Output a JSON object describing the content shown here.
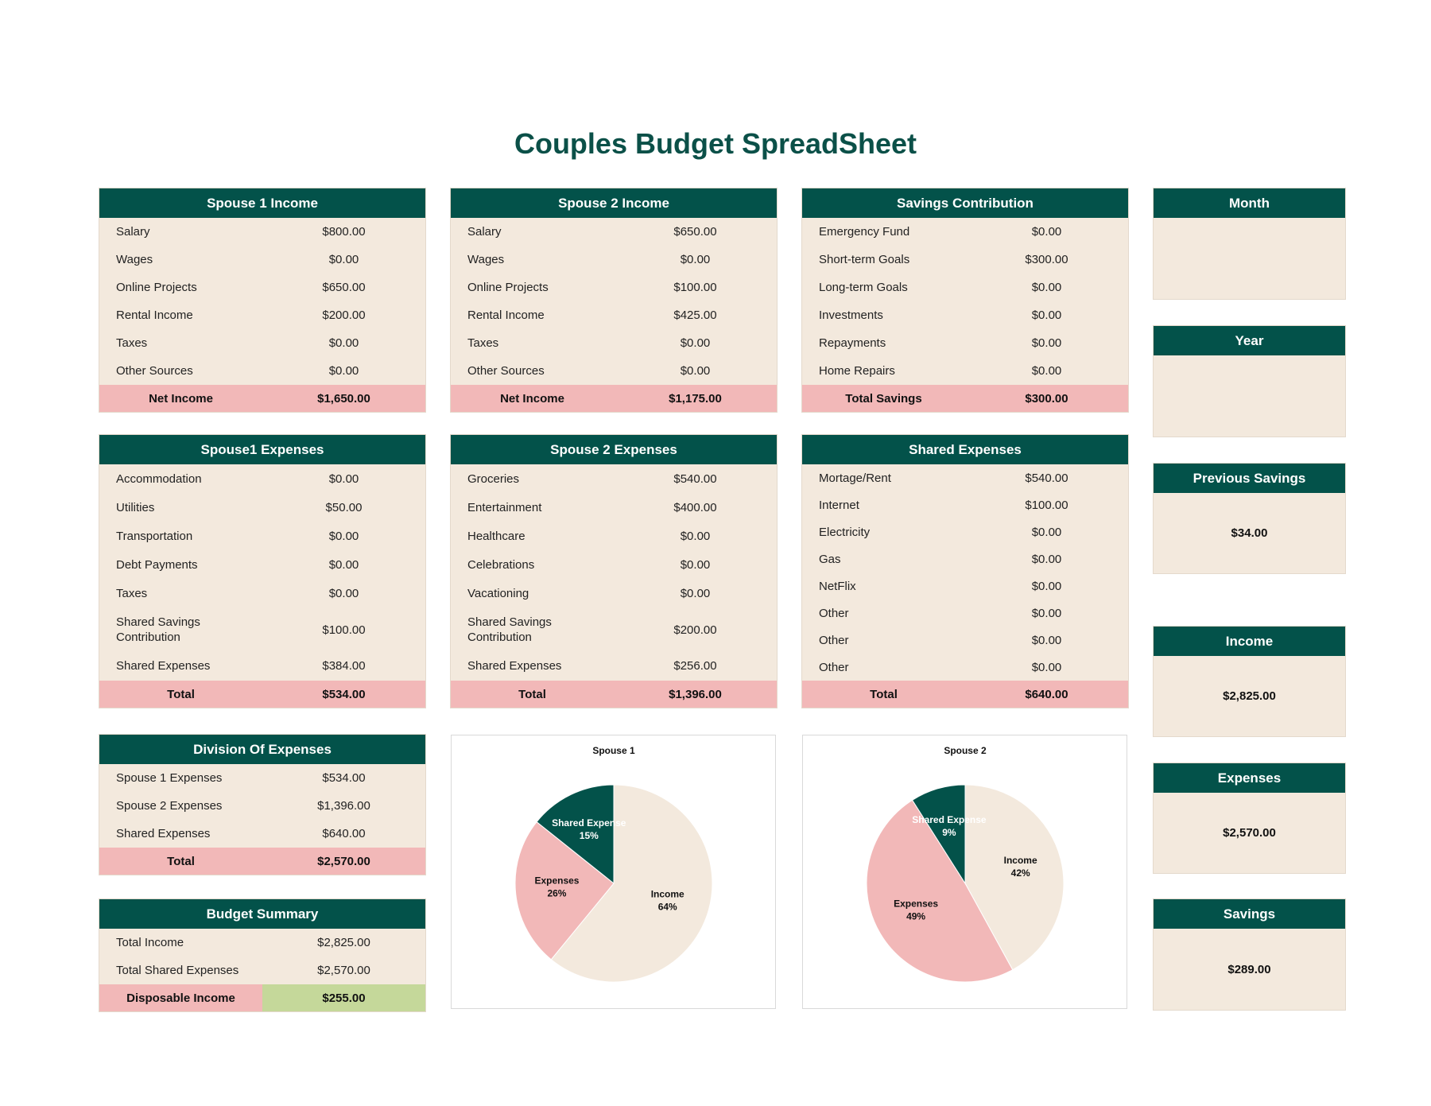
{
  "title": "Couples Budget SpreadSheet",
  "tables": [
    {
      "title": "Spouse 1 Income",
      "rows": [
        [
          "Salary",
          "$800.00"
        ],
        [
          "Wages",
          "$0.00"
        ],
        [
          "Online Projects",
          "$650.00"
        ],
        [
          "Rental Income",
          "$200.00"
        ],
        [
          "Taxes",
          "$0.00"
        ],
        [
          "Other Sources",
          "$0.00"
        ]
      ],
      "total": [
        "Net Income",
        "$1,650.00"
      ]
    },
    {
      "title": "Spouse 2 Income",
      "rows": [
        [
          "Salary",
          "$650.00"
        ],
        [
          "Wages",
          "$0.00"
        ],
        [
          "Online Projects",
          "$100.00"
        ],
        [
          "Rental Income",
          "$425.00"
        ],
        [
          "Taxes",
          "$0.00"
        ],
        [
          "Other Sources",
          "$0.00"
        ]
      ],
      "total": [
        "Net Income",
        "$1,175.00"
      ]
    },
    {
      "title": "Savings Contribution",
      "rows": [
        [
          "Emergency Fund",
          "$0.00"
        ],
        [
          "Short-term Goals",
          "$300.00"
        ],
        [
          "Long-term Goals",
          "$0.00"
        ],
        [
          "Investments",
          "$0.00"
        ],
        [
          "Repayments",
          "$0.00"
        ],
        [
          "Home Repairs",
          "$0.00"
        ]
      ],
      "total": [
        "Total  Savings",
        "$300.00"
      ]
    },
    {
      "title": "Spouse1  Expenses",
      "rows": [
        [
          "Accommodation",
          "$0.00"
        ],
        [
          "Utilities",
          "$50.00"
        ],
        [
          "Transportation",
          "$0.00"
        ],
        [
          "Debt Payments",
          "$0.00"
        ],
        [
          "Taxes",
          "$0.00"
        ],
        [
          "Shared Savings Contribution",
          "$100.00"
        ],
        [
          "Shared Expenses",
          "$384.00"
        ]
      ],
      "total": [
        "Total",
        "$534.00"
      ]
    },
    {
      "title": "Spouse 2 Expenses",
      "rows": [
        [
          "Groceries",
          "$540.00"
        ],
        [
          "Entertainment",
          "$400.00"
        ],
        [
          "Healthcare",
          "$0.00"
        ],
        [
          "Celebrations",
          "$0.00"
        ],
        [
          "Vacationing",
          "$0.00"
        ],
        [
          "Shared Savings Contribution",
          "$200.00"
        ],
        [
          "Shared Expenses",
          "$256.00"
        ]
      ],
      "total": [
        "Total",
        "$1,396.00"
      ]
    },
    {
      "title": "Shared Expenses",
      "rows": [
        [
          "Mortage/Rent",
          "$540.00"
        ],
        [
          "Internet",
          "$100.00"
        ],
        [
          "Electricity",
          "$0.00"
        ],
        [
          "Gas",
          "$0.00"
        ],
        [
          "NetFlix",
          "$0.00"
        ],
        [
          "Other",
          "$0.00"
        ],
        [
          "Other",
          "$0.00"
        ],
        [
          "Other",
          "$0.00"
        ]
      ],
      "total": [
        "Total",
        "$640.00"
      ]
    },
    {
      "title": "Division Of Expenses",
      "rows": [
        [
          "Spouse 1  Expenses",
          "$534.00"
        ],
        [
          "Spouse 2  Expenses",
          "$1,396.00"
        ],
        [
          "Shared Expenses",
          "$640.00"
        ]
      ],
      "total": [
        "Total",
        "$2,570.00"
      ]
    },
    {
      "title": "Budget Summary",
      "rows": [
        [
          "Total Income",
          "$2,825.00"
        ],
        [
          "Total Shared Expenses",
          "$2,570.00"
        ]
      ],
      "total": [
        "Disposable Income",
        "$255.00"
      ]
    }
  ],
  "side_boxes": [
    {
      "title": "Month"
    },
    {
      "title": "Year"
    },
    {
      "title": "Previous Savings",
      "value": "$34.00"
    },
    {
      "title": "Income",
      "value": "$2,825.00"
    },
    {
      "title": "Expenses",
      "value": "$2,570.00"
    },
    {
      "title": "Savings",
      "value": "$289.00"
    }
  ],
  "chart_data": [
    {
      "type": "pie",
      "title": "Spouse 1",
      "categories": [
        "Income",
        "Expenses",
        "Shared Expense"
      ],
      "values": [
        64,
        26,
        15
      ],
      "value_labels": [
        "64%",
        "26%",
        "15%"
      ],
      "colors": [
        "#f3e9dd",
        "#f2b8b8",
        "#03524a"
      ]
    },
    {
      "type": "pie",
      "title": "Spouse 2",
      "categories": [
        "Income",
        "Expenses",
        "Shared Expense"
      ],
      "values": [
        42,
        49,
        9
      ],
      "value_labels": [
        "42%",
        "49%",
        "9%"
      ],
      "colors": [
        "#f3e9dd",
        "#f2b8b8",
        "#03524a"
      ]
    }
  ]
}
